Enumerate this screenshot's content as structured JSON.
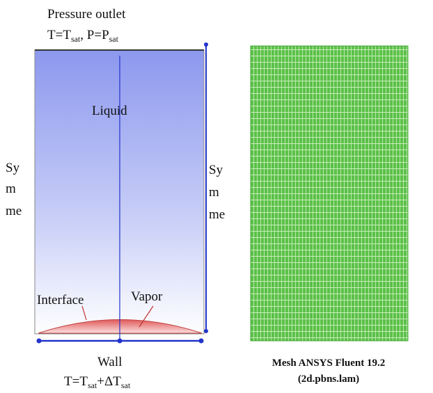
{
  "domain": {
    "outlet": {
      "title": "Pressure outlet",
      "condition": [
        "T=T",
        "sat",
        ", P=P",
        "sat"
      ]
    },
    "symmetry_left": [
      "Sy",
      "m",
      "me"
    ],
    "symmetry_right": [
      "Sy",
      "m",
      "me"
    ],
    "liquid": "Liquid",
    "interface": "Interface",
    "vapor": "Vapor",
    "wall": {
      "title": "Wall",
      "condition": [
        "T=T",
        "sat",
        "+ΔT",
        "sat"
      ]
    }
  },
  "mesh": {
    "caption": [
      "Mesh ANSYS Fluent 19.2",
      "(2d.pbns.lam)"
    ]
  }
}
